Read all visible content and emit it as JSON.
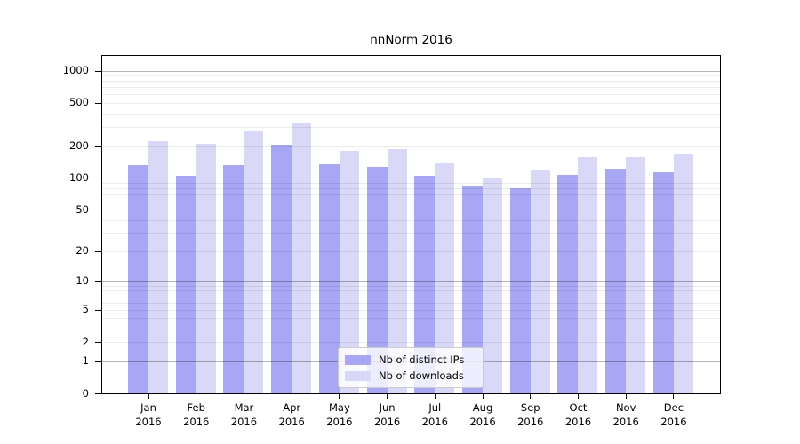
{
  "title": "nnNorm 2016",
  "colors": {
    "ips": "#a7a7f4",
    "downloads": "#d9d9f7",
    "grid_major": "#b5b5b5",
    "grid_minor": "#eaeaea",
    "axis": "#000000",
    "legend_border": "#cccccc"
  },
  "chart_data": {
    "type": "bar",
    "title": "nnNorm 2016",
    "categories": [
      "Jan",
      "Feb",
      "Mar",
      "Apr",
      "May",
      "Jun",
      "Jul",
      "Aug",
      "Sep",
      "Oct",
      "Nov",
      "Dec"
    ],
    "year": "2016",
    "series": [
      {
        "name": "Nb of distinct IPs",
        "color_key": "ips",
        "values": [
          131,
          105,
          131,
          204,
          135,
          126,
          104,
          85,
          79,
          107,
          122,
          112
        ]
      },
      {
        "name": "Nb of downloads",
        "color_key": "downloads",
        "values": [
          219,
          208,
          277,
          325,
          180,
          186,
          140,
          99,
          118,
          157,
          155,
          169
        ]
      }
    ],
    "yscale": "log1p",
    "ylim": [
      0,
      1370
    ],
    "y_ticks": [
      0,
      1,
      2,
      5,
      10,
      20,
      50,
      100,
      200,
      500,
      1000
    ],
    "grid": "on",
    "legend_position": "lower center"
  }
}
